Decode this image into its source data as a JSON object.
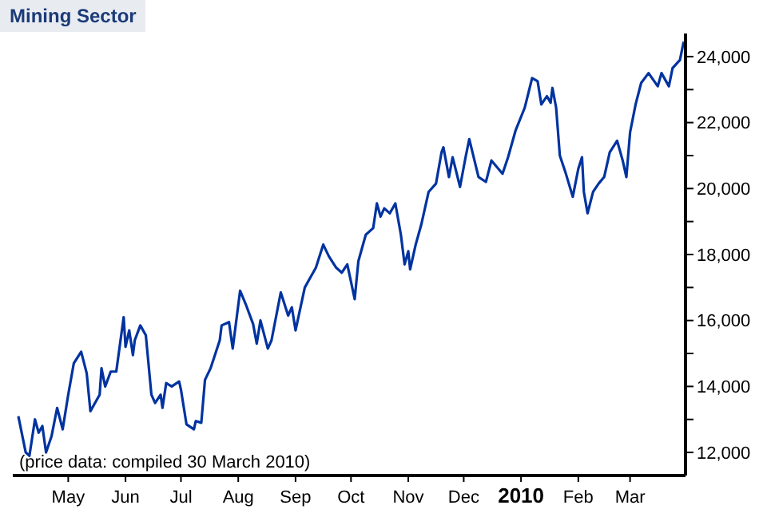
{
  "chart_data": {
    "type": "line",
    "title": "Mining Sector",
    "annotations": [
      "(price data: compiled 30 March 2010)"
    ],
    "x": [
      "2009-04-04",
      "2009-04-08",
      "2009-04-10",
      "2009-04-13",
      "2009-04-15",
      "2009-04-17",
      "2009-04-19",
      "2009-04-22",
      "2009-04-25",
      "2009-04-28",
      "2009-05-01",
      "2009-05-04",
      "2009-05-08",
      "2009-05-11",
      "2009-05-13",
      "2009-05-18",
      "2009-05-19",
      "2009-05-21",
      "2009-05-24",
      "2009-05-27",
      "2009-05-31",
      "2009-06-01",
      "2009-06-03",
      "2009-06-05",
      "2009-06-06",
      "2009-06-09",
      "2009-06-12",
      "2009-06-15",
      "2009-06-17",
      "2009-06-20",
      "2009-06-21",
      "2009-06-23",
      "2009-06-26",
      "2009-06-30",
      "2009-07-01",
      "2009-07-04",
      "2009-07-08",
      "2009-07-09",
      "2009-07-12",
      "2009-07-14",
      "2009-07-17",
      "2009-07-22",
      "2009-07-23",
      "2009-07-27",
      "2009-07-29",
      "2009-08-02",
      "2009-08-05",
      "2009-08-09",
      "2009-08-11",
      "2009-08-13",
      "2009-08-17",
      "2009-08-19",
      "2009-08-24",
      "2009-08-28",
      "2009-08-30",
      "2009-09-01",
      "2009-09-06",
      "2009-09-08",
      "2009-09-12",
      "2009-09-16",
      "2009-09-19",
      "2009-09-23",
      "2009-09-26",
      "2009-09-29",
      "2009-10-03",
      "2009-10-05",
      "2009-10-09",
      "2009-10-13",
      "2009-10-15",
      "2009-10-17",
      "2009-10-19",
      "2009-10-22",
      "2009-10-25",
      "2009-10-28",
      "2009-10-30",
      "2009-11-01",
      "2009-11-02",
      "2009-11-05",
      "2009-11-08",
      "2009-11-12",
      "2009-11-16",
      "2009-11-19",
      "2009-11-20",
      "2009-11-23",
      "2009-11-25",
      "2009-11-29",
      "2009-12-02",
      "2009-12-04",
      "2009-12-09",
      "2009-12-13",
      "2009-12-16",
      "2009-12-22",
      "2009-12-25",
      "2009-12-29",
      "2010-01-03",
      "2010-01-07",
      "2010-01-10",
      "2010-01-12",
      "2010-01-15",
      "2010-01-17",
      "2010-01-18",
      "2010-01-20",
      "2010-01-22",
      "2010-01-25",
      "2010-01-29",
      "2010-02-01",
      "2010-02-03",
      "2010-02-04",
      "2010-02-06",
      "2010-02-09",
      "2010-02-12",
      "2010-02-15",
      "2010-02-18",
      "2010-02-22",
      "2010-02-25",
      "2010-02-27",
      "2010-03-01",
      "2010-03-04",
      "2010-03-07",
      "2010-03-11",
      "2010-03-16",
      "2010-03-18",
      "2010-03-22",
      "2010-03-24",
      "2010-03-28",
      "2010-03-30"
    ],
    "series": [
      {
        "color": "#0033a0",
        "values": [
          13100,
          12000,
          11900,
          13000,
          12600,
          12800,
          12000,
          12500,
          13350,
          12700,
          13750,
          14700,
          15050,
          14400,
          13250,
          13750,
          14550,
          14000,
          14450,
          14450,
          16100,
          15200,
          15700,
          14950,
          15400,
          15850,
          15550,
          13750,
          13500,
          13750,
          13350,
          14100,
          14000,
          14150,
          13900,
          12850,
          12700,
          12950,
          12900,
          14200,
          14550,
          15400,
          15850,
          15950,
          15150,
          16900,
          16500,
          15900,
          15300,
          16000,
          15150,
          15400,
          16850,
          16150,
          16400,
          15700,
          17000,
          17200,
          17600,
          18300,
          17950,
          17600,
          17450,
          17700,
          16650,
          17800,
          18600,
          18800,
          19550,
          19150,
          19400,
          19250,
          19550,
          18600,
          17700,
          18100,
          17550,
          18300,
          18900,
          19900,
          20150,
          21100,
          21250,
          20350,
          20950,
          20050,
          20950,
          21500,
          20350,
          20200,
          20850,
          20450,
          20950,
          21750,
          22450,
          23350,
          23250,
          22550,
          22800,
          22600,
          23050,
          22450,
          21000,
          20500,
          19750,
          20600,
          20950,
          19900,
          19250,
          19900,
          20150,
          20350,
          21100,
          21450,
          20850,
          20350,
          21700,
          22550,
          23200,
          23500,
          23100,
          23500,
          23100,
          23650,
          23900,
          24450
        ]
      }
    ],
    "xlim": [
      "2009-04-01",
      "2010-03-31"
    ],
    "xticks": [
      {
        "value": "2009-05-01",
        "label": "May"
      },
      {
        "value": "2009-06-01",
        "label": "Jun"
      },
      {
        "value": "2009-07-01",
        "label": "Jul"
      },
      {
        "value": "2009-08-01",
        "label": "Aug"
      },
      {
        "value": "2009-09-01",
        "label": "Sep"
      },
      {
        "value": "2009-10-01",
        "label": "Oct"
      },
      {
        "value": "2009-11-01",
        "label": "Nov"
      },
      {
        "value": "2009-12-01",
        "label": "Dec"
      },
      {
        "value": "2010-01-01",
        "label": "2010"
      },
      {
        "value": "2010-02-01",
        "label": "Feb"
      },
      {
        "value": "2010-03-01",
        "label": "Mar"
      }
    ],
    "ylim": [
      11300,
      24700
    ],
    "yticks": [
      {
        "value": 12000,
        "label": "12,000"
      },
      {
        "value": 13000,
        "label": null
      },
      {
        "value": 14000,
        "label": "14,000"
      },
      {
        "value": 15000,
        "label": null
      },
      {
        "value": 16000,
        "label": "16,000"
      },
      {
        "value": 17000,
        "label": null
      },
      {
        "value": 18000,
        "label": "18,000"
      },
      {
        "value": 19000,
        "label": null
      },
      {
        "value": 20000,
        "label": "20,000"
      },
      {
        "value": 21000,
        "label": null
      },
      {
        "value": 22000,
        "label": "22,000"
      },
      {
        "value": 23000,
        "label": null
      },
      {
        "value": 24000,
        "label": "24,000"
      }
    ],
    "grid": false,
    "legend": false,
    "marker": "none",
    "line_style": "solid"
  }
}
